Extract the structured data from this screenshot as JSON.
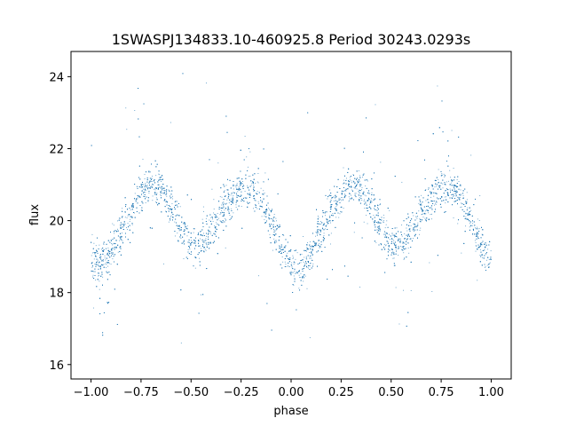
{
  "chart_data": {
    "type": "scatter",
    "title": "1SWASPJ134833.10-460925.8 Period 30243.0293s",
    "xlabel": "phase",
    "ylabel": "flux",
    "xlim": [
      -1.1,
      1.1
    ],
    "ylim": [
      15.6,
      24.7
    ],
    "xticks": [
      -1.0,
      -0.75,
      -0.5,
      -0.25,
      0.0,
      0.25,
      0.5,
      0.75,
      1.0
    ],
    "xtick_labels": [
      "−1.00",
      "−0.75",
      "−0.50",
      "−0.25",
      "0.00",
      "0.25",
      "0.50",
      "0.75",
      "1.00"
    ],
    "yticks": [
      16,
      18,
      20,
      22,
      24
    ],
    "ytick_labels": [
      "16",
      "18",
      "20",
      "22",
      "24"
    ],
    "grid": false,
    "point_color": "#1f77b4",
    "series": [
      {
        "x": [
          -1.0,
          -0.95,
          -0.9,
          -0.85,
          -0.8,
          -0.75,
          -0.7,
          -0.65,
          -0.6,
          -0.55,
          -0.5,
          -0.45,
          -0.4,
          -0.35,
          -0.3,
          -0.25,
          -0.2,
          -0.15,
          -0.1,
          -0.05,
          0.0,
          0.05,
          0.1,
          0.15,
          0.2,
          0.25,
          0.3,
          0.35,
          0.4,
          0.45,
          0.5,
          0.55,
          0.6,
          0.65,
          0.7,
          0.75,
          0.8,
          0.85,
          0.9,
          0.95,
          1.0
        ],
        "y": [
          18.9,
          18.75,
          19.1,
          19.7,
          20.3,
          20.75,
          21.0,
          20.9,
          20.4,
          19.8,
          19.35,
          19.3,
          19.7,
          20.2,
          20.6,
          20.9,
          20.95,
          20.6,
          20.0,
          19.3,
          18.75,
          18.7,
          19.1,
          19.7,
          20.3,
          20.75,
          21.0,
          20.9,
          20.4,
          19.8,
          19.35,
          19.3,
          19.7,
          20.2,
          20.6,
          20.9,
          20.95,
          20.6,
          20.0,
          19.3,
          18.9
        ]
      }
    ]
  }
}
